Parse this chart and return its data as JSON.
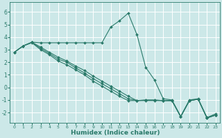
{
  "xlabel": "Humidex (Indice chaleur)",
  "ylabel": "",
  "xlim": [
    -0.5,
    23.5
  ],
  "ylim": [
    -2.8,
    6.8
  ],
  "yticks": [
    -2,
    -1,
    0,
    1,
    2,
    3,
    4,
    5,
    6
  ],
  "xticks": [
    0,
    1,
    2,
    3,
    4,
    5,
    6,
    7,
    8,
    9,
    10,
    11,
    12,
    13,
    14,
    15,
    16,
    17,
    18,
    19,
    20,
    21,
    22,
    23
  ],
  "background_color": "#cce8e8",
  "grid_color": "#ffffff",
  "line_color": "#2a7a6a",
  "series": [
    {
      "x": [
        0,
        1,
        2,
        3,
        4,
        5,
        6,
        7,
        8,
        9,
        10,
        11,
        12,
        13,
        14,
        15,
        16,
        17,
        18,
        19,
        20,
        21,
        22,
        23
      ],
      "y": [
        2.8,
        3.3,
        3.6,
        3.55,
        3.55,
        3.55,
        3.55,
        3.55,
        3.55,
        3.55,
        3.55,
        4.8,
        5.3,
        5.9,
        4.2,
        1.6,
        0.6,
        -0.9,
        -1.0,
        -2.3,
        -1.0,
        -0.9,
        -2.4,
        -2.1
      ]
    },
    {
      "x": [
        0,
        1,
        2,
        3,
        4,
        5,
        6,
        7,
        8,
        9,
        10,
        11,
        12,
        13,
        14,
        15,
        16,
        17,
        18,
        19,
        20,
        21,
        22,
        23
      ],
      "y": [
        2.8,
        3.3,
        3.6,
        3.2,
        2.8,
        2.4,
        2.1,
        1.7,
        1.35,
        0.9,
        0.5,
        0.1,
        -0.3,
        -0.7,
        -1.05,
        -1.0,
        -1.0,
        -1.05,
        -1.05,
        -2.3,
        -1.05,
        -0.95,
        -2.4,
        -2.2
      ]
    },
    {
      "x": [
        0,
        1,
        2,
        3,
        4,
        5,
        6,
        7,
        8,
        9,
        10,
        11,
        12,
        13,
        14,
        15,
        16,
        17,
        18,
        19,
        20,
        21,
        22,
        23
      ],
      "y": [
        2.8,
        3.3,
        3.55,
        3.0,
        2.6,
        2.1,
        1.8,
        1.4,
        1.0,
        0.5,
        0.1,
        -0.3,
        -0.7,
        -1.05,
        -1.05,
        -1.05,
        -1.05,
        -1.05,
        -1.05,
        -2.35,
        -1.05,
        -0.95,
        -2.45,
        -2.2
      ]
    },
    {
      "x": [
        0,
        1,
        2,
        3,
        4,
        5,
        6,
        7,
        8,
        9,
        10,
        11,
        12,
        13,
        14,
        15,
        16,
        17,
        18,
        19,
        20,
        21,
        22,
        23
      ],
      "y": [
        2.8,
        3.3,
        3.58,
        3.1,
        2.7,
        2.25,
        2.0,
        1.55,
        1.15,
        0.7,
        0.3,
        -0.1,
        -0.5,
        -0.9,
        -1.05,
        -1.02,
        -1.02,
        -1.05,
        -1.05,
        -2.32,
        -1.05,
        -0.94,
        -2.42,
        -2.2
      ]
    }
  ]
}
